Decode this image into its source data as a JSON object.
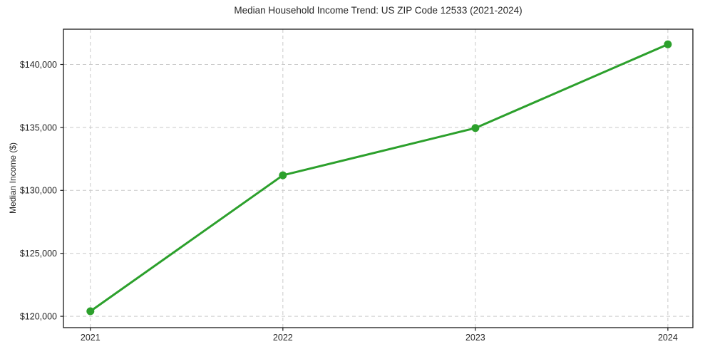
{
  "chart_data": {
    "type": "line",
    "title": "Median Household Income Trend: US ZIP Code 12533 (2021-2024)",
    "xlabel": "",
    "ylabel": "Median Income ($)",
    "x": [
      2021,
      2022,
      2023,
      2024
    ],
    "x_tick_labels": [
      "2021",
      "2022",
      "2023",
      "2024"
    ],
    "series": [
      {
        "name": "median_household_income",
        "values": [
          120400,
          131200,
          134950,
          141600
        ]
      }
    ],
    "y_ticks": [
      {
        "value": 120000,
        "label": "$120,000"
      },
      {
        "value": 125000,
        "label": "$125,000"
      },
      {
        "value": 130000,
        "label": "$130,000"
      },
      {
        "value": 135000,
        "label": "$135,000"
      },
      {
        "value": 140000,
        "label": "$140,000"
      }
    ],
    "ylim": [
      119100,
      142800
    ],
    "xlim": [
      2020.86,
      2024.13
    ],
    "grid": {
      "show": true,
      "style": "dashed",
      "color": "#c9c9c9"
    },
    "legend_position": "none",
    "style": {
      "line_color": "#2ca02c",
      "line_width": 3,
      "marker": "circle",
      "marker_radius": 5.5,
      "axis_color": "#1a1a1a",
      "text_color": "#262626",
      "background": "#ffffff"
    }
  }
}
